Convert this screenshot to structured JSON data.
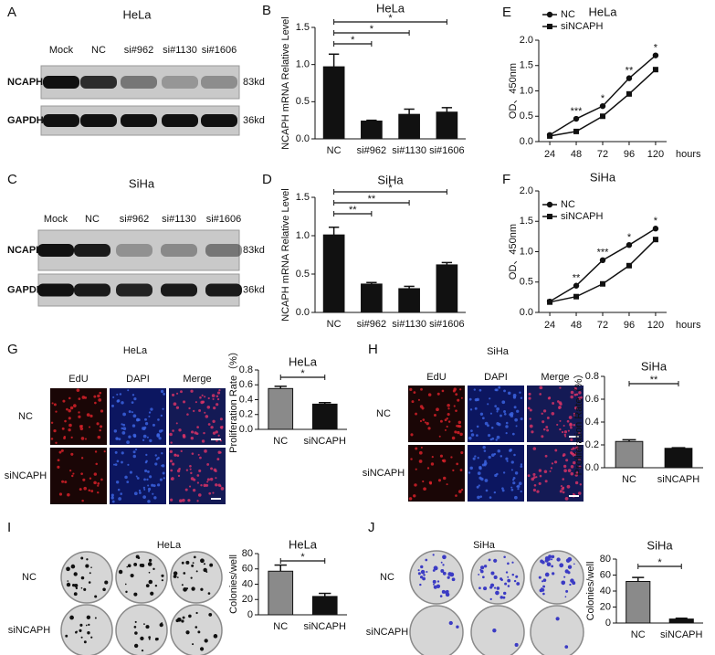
{
  "figure": {
    "blots": [
      {
        "label": "A",
        "title": "HeLa",
        "lanes": [
          "Mock",
          "NC",
          "si#962",
          "si#1130",
          "si#1606"
        ],
        "rows": [
          {
            "name": "NCAPH",
            "size": "83kd"
          },
          {
            "name": "GAPDH",
            "size": "36kd"
          }
        ]
      },
      {
        "label": "C",
        "title": "SiHa",
        "lanes": [
          "Mock",
          "NC",
          "si#962",
          "si#1130",
          "si#1606"
        ],
        "rows": [
          {
            "name": "NCAPH",
            "size": "83kd"
          },
          {
            "name": "GAPDH",
            "size": "36kd"
          }
        ]
      }
    ],
    "imaging": [
      {
        "label": "G",
        "title": "HeLa",
        "columns": [
          "EdU",
          "DAPI",
          "Merge"
        ],
        "rows": [
          "NC",
          "siNCAPH"
        ]
      },
      {
        "label": "H",
        "title": "SiHa",
        "columns": [
          "EdU",
          "DAPI",
          "Merge"
        ],
        "rows": [
          "NC",
          "siNCAPH"
        ]
      }
    ],
    "colonies": [
      {
        "label": "I",
        "title": "HeLa",
        "rows": [
          "NC",
          "siNCAPH"
        ]
      },
      {
        "label": "J",
        "title": "SiHa",
        "rows": [
          "NC",
          "siNCAPH"
        ]
      }
    ]
  },
  "chart_data": [
    {
      "type": "bar",
      "label": "B",
      "title": "HeLa",
      "y_label": "NCAPH mRNA Relative Level",
      "categories": [
        "NC",
        "si#962",
        "si#1130",
        "si#1606"
      ],
      "values": [
        0.97,
        0.24,
        0.33,
        0.36
      ],
      "errors": [
        0.17,
        0.01,
        0.07,
        0.06
      ],
      "significance": [
        null,
        "*",
        "*",
        "*"
      ],
      "color": "#111111",
      "ylim": [
        0,
        1.5
      ],
      "yticks": [
        {
          "value": 0,
          "label": "0.0"
        },
        {
          "value": 0.5,
          "label": "0.5"
        },
        {
          "value": 1,
          "label": "1.0"
        },
        {
          "value": 1.5,
          "label": "1.5"
        }
      ]
    },
    {
      "type": "bar",
      "label": "D",
      "title": "SiHa",
      "y_label": "NCAPH mRNA Relative Level",
      "categories": [
        "NC",
        "si#962",
        "si#1130",
        "si#1606"
      ],
      "values": [
        1.01,
        0.37,
        0.31,
        0.62
      ],
      "errors": [
        0.1,
        0.02,
        0.03,
        0.03
      ],
      "significance": [
        null,
        "**",
        "**",
        "*"
      ],
      "color": "#111111",
      "ylim": [
        0,
        1.5
      ],
      "yticks": [
        {
          "value": 0,
          "label": "0.0"
        },
        {
          "value": 0.5,
          "label": "0.5"
        },
        {
          "value": 1,
          "label": "1.0"
        },
        {
          "value": 1.5,
          "label": "1.5"
        }
      ]
    },
    {
      "type": "line",
      "label": "E",
      "title": "HeLa",
      "y_label": "OD、450nm",
      "x_label": "hours",
      "x": [
        24,
        48,
        72,
        96,
        120
      ],
      "xlim": [
        14,
        130
      ],
      "xticks": [
        24,
        48,
        72,
        96,
        120
      ],
      "series": [
        {
          "name": "NC",
          "color": "#111111",
          "marker": "circle",
          "values": [
            0.13,
            0.45,
            0.7,
            1.25,
            1.7
          ]
        },
        {
          "name": "siNCAPH",
          "color": "#111111",
          "marker": "square",
          "values": [
            0.11,
            0.2,
            0.5,
            0.94,
            1.42
          ]
        }
      ],
      "significance": [
        null,
        "***",
        "*",
        "**",
        "*"
      ],
      "ylim": [
        0,
        2
      ],
      "yticks": [
        {
          "value": 0,
          "label": "0.0"
        },
        {
          "value": 0.5,
          "label": "0.5"
        },
        {
          "value": 1,
          "label": "1.0"
        },
        {
          "value": 1.5,
          "label": "1.5"
        },
        {
          "value": 2,
          "label": "2.0"
        }
      ]
    },
    {
      "type": "line",
      "label": "F",
      "title": "SiHa",
      "y_label": "OD、450nm",
      "x_label": "hours",
      "x": [
        24,
        48,
        72,
        96,
        120
      ],
      "xlim": [
        14,
        130
      ],
      "xticks": [
        24,
        48,
        72,
        96,
        120
      ],
      "series": [
        {
          "name": "NC",
          "color": "#111111",
          "marker": "circle",
          "values": [
            0.18,
            0.44,
            0.86,
            1.11,
            1.38
          ]
        },
        {
          "name": "siNCAPH",
          "color": "#111111",
          "marker": "square",
          "values": [
            0.17,
            0.26,
            0.47,
            0.77,
            1.2
          ]
        }
      ],
      "significance": [
        null,
        "**",
        "***",
        "*",
        "*"
      ],
      "ylim": [
        0,
        2
      ],
      "yticks": [
        {
          "value": 0,
          "label": "0.0"
        },
        {
          "value": 0.5,
          "label": "0.5"
        },
        {
          "value": 1,
          "label": "1.0"
        },
        {
          "value": 1.5,
          "label": "1.5"
        },
        {
          "value": 2,
          "label": "2.0"
        }
      ]
    },
    {
      "type": "bar",
      "title": "HeLa",
      "y_label": "Proliferation Rate（%）",
      "categories": [
        "NC",
        "siNCAPH"
      ],
      "values": [
        0.55,
        0.34
      ],
      "errors": [
        0.03,
        0.02
      ],
      "significance": [
        null,
        "*"
      ],
      "colors": [
        "#8a8a8a",
        "#111111"
      ],
      "ylim": [
        0,
        0.8
      ],
      "yticks": [
        {
          "value": 0,
          "label": "0.0"
        },
        {
          "value": 0.2,
          "label": "0.2"
        },
        {
          "value": 0.4,
          "label": "0.4"
        },
        {
          "value": 0.6,
          "label": "0.6"
        },
        {
          "value": 0.8,
          "label": "0.8"
        }
      ]
    },
    {
      "type": "bar",
      "title": "SiHa",
      "y_label": "Proliferation Rate（%）",
      "categories": [
        "NC",
        "siNCAPH"
      ],
      "values": [
        0.23,
        0.17
      ],
      "errors": [
        0.015,
        0.005
      ],
      "significance": [
        null,
        "**"
      ],
      "colors": [
        "#8a8a8a",
        "#111111"
      ],
      "ylim": [
        0,
        0.8
      ],
      "yticks": [
        {
          "value": 0,
          "label": "0.0"
        },
        {
          "value": 0.2,
          "label": "0.2"
        },
        {
          "value": 0.4,
          "label": "0.4"
        },
        {
          "value": 0.6,
          "label": "0.6"
        },
        {
          "value": 0.8,
          "label": "0.8"
        }
      ]
    },
    {
      "type": "bar",
      "title": "HeLa",
      "y_label": "Colonies/well",
      "categories": [
        "NC",
        "siNCAPH"
      ],
      "values": [
        57,
        24
      ],
      "errors": [
        8,
        4
      ],
      "significance": [
        null,
        "*"
      ],
      "colors": [
        "#8a8a8a",
        "#111111"
      ],
      "ylim": [
        0,
        80
      ],
      "yticks": [
        0,
        20,
        40,
        60,
        80
      ]
    },
    {
      "type": "bar",
      "title": "SiHa",
      "y_label": "Colonies/well",
      "categories": [
        "NC",
        "siNCAPH"
      ],
      "values": [
        52,
        5
      ],
      "errors": [
        5,
        1
      ],
      "significance": [
        null,
        "*"
      ],
      "colors": [
        "#8a8a8a",
        "#111111"
      ],
      "ylim": [
        0,
        80
      ],
      "yticks": [
        0,
        20,
        40,
        60,
        80
      ]
    }
  ]
}
